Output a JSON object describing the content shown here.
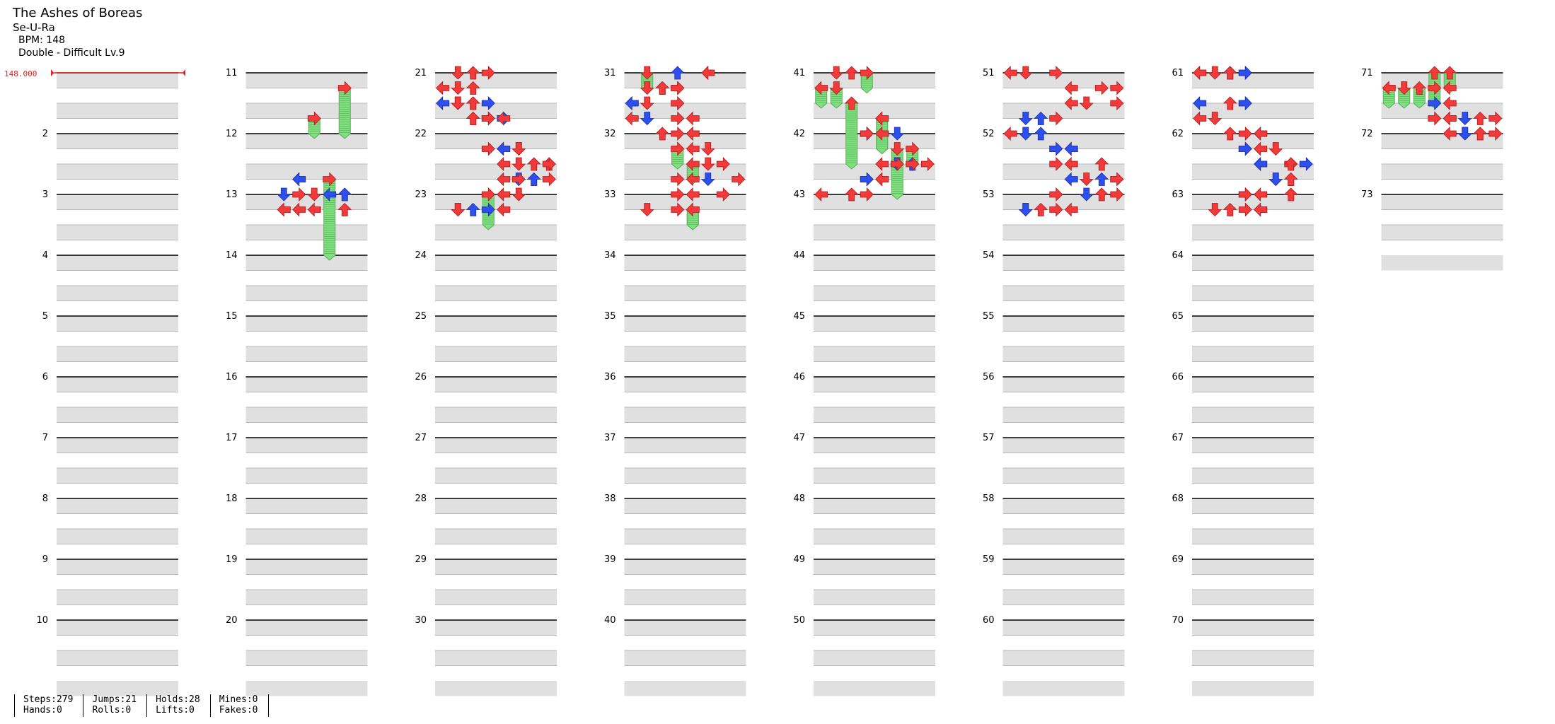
{
  "song": {
    "title": "The Ashes of Boreas",
    "artist": "Se-U-Ra",
    "bpm": "BPM: 148",
    "difficulty": "Double - Difficult Lv.9"
  },
  "bpm_marker": "148.000",
  "measure_numbers": [
    "2",
    "3",
    "4",
    "5",
    "6",
    "7",
    "8",
    "9",
    "10",
    "11",
    "12",
    "13",
    "14",
    "15",
    "16",
    "17",
    "18",
    "19",
    "20",
    "21",
    "22",
    "23",
    "24",
    "25",
    "26",
    "27",
    "28",
    "29",
    "30",
    "31",
    "32",
    "33",
    "34",
    "35",
    "36",
    "37",
    "38",
    "39",
    "40",
    "41",
    "42",
    "43",
    "44",
    "45",
    "46",
    "47",
    "48",
    "49",
    "50",
    "51",
    "52",
    "53",
    "54",
    "55",
    "56",
    "57",
    "58",
    "59",
    "60",
    "61",
    "62",
    "63",
    "64",
    "65",
    "66",
    "67",
    "68",
    "69",
    "70",
    "71",
    "72",
    "73"
  ],
  "stats": [
    {
      "a": "Steps:279",
      "b": "Hands:0"
    },
    {
      "a": "Jumps:21",
      "b": "Rolls:0"
    },
    {
      "a": "Holds:28",
      "b": "Lifts:0"
    },
    {
      "a": "Mines:0",
      "b": "Fakes:0"
    }
  ],
  "colors": {
    "red_note": "#f23a3a",
    "blue_note": "#2e4ff0",
    "hold": "#7ee07e",
    "stripe": "#e0e0e0",
    "bpm": "#e02020"
  },
  "notes": [
    [
      1,
      1,
      "R",
      6,
      "h",
      0.75
    ],
    [
      1,
      3,
      "R",
      4,
      "h",
      0.25
    ],
    [
      1,
      7,
      "R",
      5,
      "h",
      1.25
    ],
    [
      1,
      7,
      "L",
      3
    ],
    [
      1,
      7,
      "L",
      3,
      "b"
    ],
    [
      1,
      8,
      "D",
      2,
      "b"
    ],
    [
      1,
      8,
      "R",
      3
    ],
    [
      1,
      8,
      "D",
      4
    ],
    [
      1,
      8,
      "L",
      5,
      "b"
    ],
    [
      1,
      9,
      "L",
      2
    ],
    [
      1,
      9,
      "L",
      2
    ],
    [
      1,
      9,
      "L",
      3
    ],
    [
      1,
      9,
      "L",
      4
    ],
    [
      1,
      9,
      "U",
      6
    ],
    [
      1,
      8,
      "U",
      6
    ],
    [
      1,
      8,
      "U",
      6,
      "b"
    ],
    [
      2,
      0,
      "U",
      2
    ],
    [
      2,
      0,
      "R",
      3
    ],
    [
      2,
      0,
      "D",
      1
    ],
    [
      2,
      1,
      "U",
      2
    ],
    [
      2,
      1,
      "L",
      0
    ],
    [
      2,
      1,
      "D",
      1
    ],
    [
      2,
      2,
      "U",
      2
    ],
    [
      2,
      2,
      "R",
      3,
      "b"
    ],
    [
      2,
      2,
      "D",
      1
    ],
    [
      2,
      2,
      "U",
      2
    ],
    [
      2,
      2,
      "L",
      0,
      "b"
    ],
    [
      2,
      2,
      "D",
      1
    ],
    [
      2,
      3,
      "U",
      2
    ],
    [
      2,
      3,
      "R",
      3,
      "b"
    ],
    [
      2,
      3,
      "U",
      2
    ],
    [
      2,
      3,
      "R",
      4,
      "b"
    ],
    [
      2,
      3,
      "R",
      3
    ],
    [
      2,
      3,
      "L",
      4
    ],
    [
      2,
      5,
      "L",
      4
    ],
    [
      2,
      5,
      "R",
      3
    ],
    [
      2,
      5,
      "L",
      4,
      "b"
    ],
    [
      2,
      5,
      "D",
      5
    ],
    [
      2,
      5,
      "D",
      5
    ],
    [
      2,
      6,
      "L",
      4
    ],
    [
      2,
      6,
      "U",
      6
    ],
    [
      2,
      6,
      "D",
      5
    ],
    [
      2,
      6,
      "U",
      7
    ],
    [
      2,
      6,
      "R",
      7
    ],
    [
      2,
      7,
      "U",
      6
    ],
    [
      2,
      7,
      "D",
      5,
      "b"
    ],
    [
      2,
      7,
      "L",
      4
    ],
    [
      2,
      7,
      "R",
      5
    ],
    [
      2,
      7,
      "U",
      6,
      "b"
    ],
    [
      2,
      7,
      "R",
      7
    ],
    [
      2,
      8,
      "L",
      4
    ],
    [
      2,
      8,
      "D",
      5
    ],
    [
      2,
      8,
      "R",
      3,
      "h",
      0.5
    ],
    [
      2,
      9,
      "L",
      4
    ],
    [
      2,
      9,
      "U",
      2,
      "b"
    ],
    [
      2,
      9,
      "R",
      3,
      "b"
    ],
    [
      2,
      9,
      "D",
      1
    ],
    [
      2,
      9,
      "D",
      1
    ],
    [
      3,
      0,
      "L",
      5
    ],
    [
      3,
      0,
      "U",
      3,
      "b"
    ],
    [
      3,
      0,
      "L",
      5
    ],
    [
      3,
      0,
      "D",
      1,
      "h",
      0.25
    ],
    [
      3,
      1,
      "R",
      3
    ],
    [
      3,
      1,
      "R",
      3
    ],
    [
      3,
      1,
      "U",
      2
    ],
    [
      3,
      1,
      "R",
      3
    ],
    [
      3,
      1,
      "U",
      2
    ],
    [
      3,
      1,
      "D",
      1
    ],
    [
      3,
      1,
      "U",
      2
    ],
    [
      3,
      2,
      "L",
      0,
      "b"
    ],
    [
      3,
      2,
      "D",
      1
    ],
    [
      3,
      2,
      "L",
      0,
      "b"
    ],
    [
      3,
      2,
      "R",
      3
    ],
    [
      3,
      2,
      "R",
      3
    ],
    [
      3,
      3,
      "L",
      0
    ],
    [
      3,
      3,
      "D",
      1,
      "b"
    ],
    [
      3,
      3,
      "R",
      3
    ],
    [
      3,
      3,
      "L",
      4
    ],
    [
      3,
      4,
      "R",
      3
    ],
    [
      3,
      4,
      "L",
      4
    ],
    [
      3,
      4,
      "U",
      2
    ],
    [
      3,
      4,
      "L",
      4
    ],
    [
      3,
      5,
      "R",
      3,
      "h",
      0.25
    ],
    [
      3,
      5,
      "L",
      4
    ],
    [
      3,
      5,
      "R",
      3,
      "h",
      0.25
    ],
    [
      3,
      5,
      "D",
      5
    ],
    [
      3,
      6,
      "L",
      4,
      "h",
      0.25
    ],
    [
      3,
      6,
      "D",
      5
    ],
    [
      3,
      6,
      "R",
      6
    ],
    [
      3,
      7,
      "R",
      7
    ],
    [
      3,
      7,
      "D",
      5,
      "b"
    ],
    [
      3,
      7,
      "L",
      4
    ],
    [
      3,
      7,
      "R",
      3
    ],
    [
      3,
      8,
      "L",
      4
    ],
    [
      3,
      8,
      "R",
      3
    ],
    [
      3,
      8,
      "R",
      6
    ],
    [
      3,
      9,
      "R",
      3
    ],
    [
      3,
      9,
      "L",
      4,
      "h",
      0.25
    ],
    [
      3,
      9,
      "L",
      4,
      "h",
      0.25
    ],
    [
      3,
      9,
      "D",
      1
    ],
    [
      4,
      0,
      "R",
      3,
      "h",
      0.25
    ],
    [
      4,
      0,
      "D",
      1
    ],
    [
      4,
      0,
      "U",
      2
    ],
    [
      4,
      1,
      "L",
      0,
      "h",
      0.25
    ],
    [
      4,
      1,
      "D",
      1,
      "h",
      0.25
    ],
    [
      4,
      2,
      "U",
      2,
      "h",
      1
    ],
    [
      4,
      3,
      "L",
      4,
      "h",
      0.5
    ],
    [
      4,
      3,
      "L",
      4
    ],
    [
      4,
      4,
      "R",
      3
    ],
    [
      4,
      4,
      "R",
      3,
      "b"
    ],
    [
      4,
      4,
      "L",
      4,
      "b"
    ],
    [
      4,
      4,
      "R",
      3
    ],
    [
      4,
      4,
      "D",
      5,
      "b"
    ],
    [
      4,
      4,
      "L",
      4,
      "h",
      0.25
    ],
    [
      4,
      5,
      "R",
      6,
      "h",
      0.25
    ],
    [
      4,
      5,
      "D",
      5,
      "h",
      0.75
    ],
    [
      4,
      6,
      "R",
      7
    ],
    [
      4,
      6,
      "D",
      5,
      "b"
    ],
    [
      4,
      6,
      "R",
      5
    ],
    [
      4,
      6,
      "U",
      6,
      "b"
    ],
    [
      4,
      6,
      "L",
      4
    ],
    [
      4,
      6,
      "R",
      6
    ],
    [
      4,
      7,
      "R",
      3,
      "b"
    ],
    [
      4,
      7,
      "L",
      4
    ],
    [
      4,
      7,
      "R",
      3,
      "b"
    ],
    [
      4,
      7,
      "L",
      4
    ],
    [
      4,
      8,
      "R",
      3
    ],
    [
      4,
      8,
      "U",
      2
    ],
    [
      4,
      8,
      "L",
      0
    ],
    [
      5,
      0,
      "L",
      0
    ],
    [
      5,
      0,
      "D",
      1
    ],
    [
      5,
      0,
      "R",
      3
    ],
    [
      5,
      1,
      "L",
      4
    ],
    [
      5,
      1,
      "R",
      6
    ],
    [
      5,
      1,
      "R",
      7
    ],
    [
      5,
      2,
      "R",
      7
    ],
    [
      5,
      2,
      "D",
      5
    ],
    [
      5,
      2,
      "L",
      4
    ],
    [
      5,
      3,
      "R",
      3
    ],
    [
      5,
      3,
      "D",
      1,
      "b"
    ],
    [
      5,
      3,
      "U",
      2,
      "b"
    ],
    [
      5,
      4,
      "L",
      0
    ],
    [
      5,
      4,
      "D",
      1,
      "b"
    ],
    [
      5,
      4,
      "U",
      2,
      "b"
    ],
    [
      5,
      5,
      "R",
      3
    ],
    [
      5,
      5,
      "L",
      4
    ],
    [
      5,
      5,
      "R",
      3,
      "b"
    ],
    [
      5,
      5,
      "L",
      4,
      "b"
    ],
    [
      5,
      6,
      "R",
      3
    ],
    [
      5,
      6,
      "L",
      4
    ],
    [
      5,
      6,
      "U",
      6
    ],
    [
      5,
      7,
      "R",
      7
    ],
    [
      5,
      7,
      "D",
      5
    ],
    [
      5,
      7,
      "U",
      6,
      "b"
    ],
    [
      5,
      7,
      "L",
      4,
      "b"
    ],
    [
      5,
      7,
      "R",
      7
    ],
    [
      5,
      8,
      "R",
      7
    ],
    [
      5,
      8,
      "D",
      5,
      "b"
    ],
    [
      5,
      8,
      "U",
      6
    ],
    [
      5,
      8,
      "R",
      3
    ],
    [
      5,
      9,
      "L",
      4
    ],
    [
      5,
      9,
      "R",
      3
    ],
    [
      5,
      9,
      "D",
      1,
      "b"
    ],
    [
      5,
      9,
      "D",
      1,
      "b"
    ],
    [
      5,
      9,
      "U",
      2
    ],
    [
      6,
      0,
      "L",
      0
    ],
    [
      6,
      0,
      "U",
      2,
      "b"
    ],
    [
      6,
      0,
      "L",
      0
    ],
    [
      6,
      0,
      "U",
      2,
      "b"
    ],
    [
      6,
      0,
      "D",
      1
    ],
    [
      6,
      0,
      "R",
      3,
      "b"
    ],
    [
      6,
      0,
      "U",
      2
    ],
    [
      6,
      0,
      "R",
      3,
      "b"
    ],
    [
      6,
      2,
      "U",
      2
    ],
    [
      6,
      2,
      "R",
      3
    ],
    [
      6,
      2,
      "L",
      0,
      "b"
    ],
    [
      6,
      2,
      "R",
      3,
      "b"
    ],
    [
      6,
      3,
      "L",
      0
    ],
    [
      6,
      3,
      "D",
      1
    ],
    [
      6,
      4,
      "U",
      2
    ],
    [
      6,
      4,
      "L",
      4,
      "b"
    ],
    [
      6,
      4,
      "R",
      3
    ],
    [
      6,
      4,
      "L",
      4
    ],
    [
      6,
      5,
      "R",
      3
    ],
    [
      6,
      5,
      "D",
      5
    ],
    [
      6,
      5,
      "R",
      3,
      "b"
    ],
    [
      6,
      5,
      "L",
      4
    ],
    [
      6,
      6,
      "R",
      6
    ],
    [
      6,
      6,
      "L",
      4
    ],
    [
      6,
      6,
      "U",
      6
    ],
    [
      6,
      6,
      "L",
      4,
      "b"
    ],
    [
      6,
      6,
      "R",
      7,
      "b"
    ],
    [
      6,
      7,
      "D",
      5
    ],
    [
      6,
      7,
      "U",
      6,
      "b"
    ],
    [
      6,
      7,
      "D",
      5,
      "b"
    ],
    [
      6,
      7,
      "U",
      6
    ],
    [
      6,
      8,
      "R",
      3,
      "b"
    ],
    [
      6,
      8,
      "L",
      4
    ],
    [
      6,
      8,
      "R",
      3
    ],
    [
      6,
      8,
      "U",
      6
    ],
    [
      6,
      9,
      "D",
      1
    ],
    [
      6,
      9,
      "R",
      3
    ],
    [
      6,
      9,
      "L",
      4,
      "b"
    ],
    [
      6,
      9,
      "L",
      4
    ],
    [
      6,
      9,
      "U",
      2
    ],
    [
      7,
      0,
      "U",
      4,
      "h",
      0.25
    ],
    [
      7,
      0,
      "U",
      3,
      "h",
      0.5
    ],
    [
      7,
      1,
      "L",
      0
    ],
    [
      7,
      1,
      "U",
      2,
      "h",
      0.25
    ],
    [
      7,
      1,
      "L",
      0,
      "h",
      0.25
    ],
    [
      7,
      1,
      "D",
      1,
      "h",
      0.25
    ],
    [
      7,
      1,
      "R",
      3
    ],
    [
      7,
      1,
      "L",
      4
    ],
    [
      7,
      2,
      "R",
      3,
      "b"
    ],
    [
      7,
      2,
      "L",
      4
    ],
    [
      7,
      3,
      "R",
      3
    ],
    [
      7,
      3,
      "D",
      5,
      "b"
    ],
    [
      7,
      3,
      "L",
      4
    ],
    [
      7,
      3,
      "U",
      6
    ],
    [
      7,
      3,
      "L",
      4
    ],
    [
      7,
      3,
      "R",
      7
    ],
    [
      7,
      4,
      "D",
      5,
      "b"
    ],
    [
      7,
      4,
      "U",
      6
    ],
    [
      7,
      4,
      "L",
      4
    ],
    [
      7,
      4,
      "D",
      5,
      "b"
    ],
    [
      7,
      4,
      "U",
      6
    ],
    [
      7,
      4,
      "R",
      7
    ],
    [
      8,
      0,
      "U",
      6
    ],
    [
      8,
      0,
      "R",
      7,
      "b"
    ],
    [
      8,
      0,
      "D",
      5
    ],
    [
      8,
      0,
      "L",
      4
    ],
    [
      8,
      1,
      "R",
      3
    ],
    [
      8,
      1,
      "U",
      2
    ],
    [
      8,
      1,
      "L",
      0
    ],
    [
      8,
      1,
      "D",
      1
    ],
    [
      8,
      1,
      "U",
      2
    ],
    [
      8,
      1,
      "R",
      3,
      "b"
    ]
  ]
}
